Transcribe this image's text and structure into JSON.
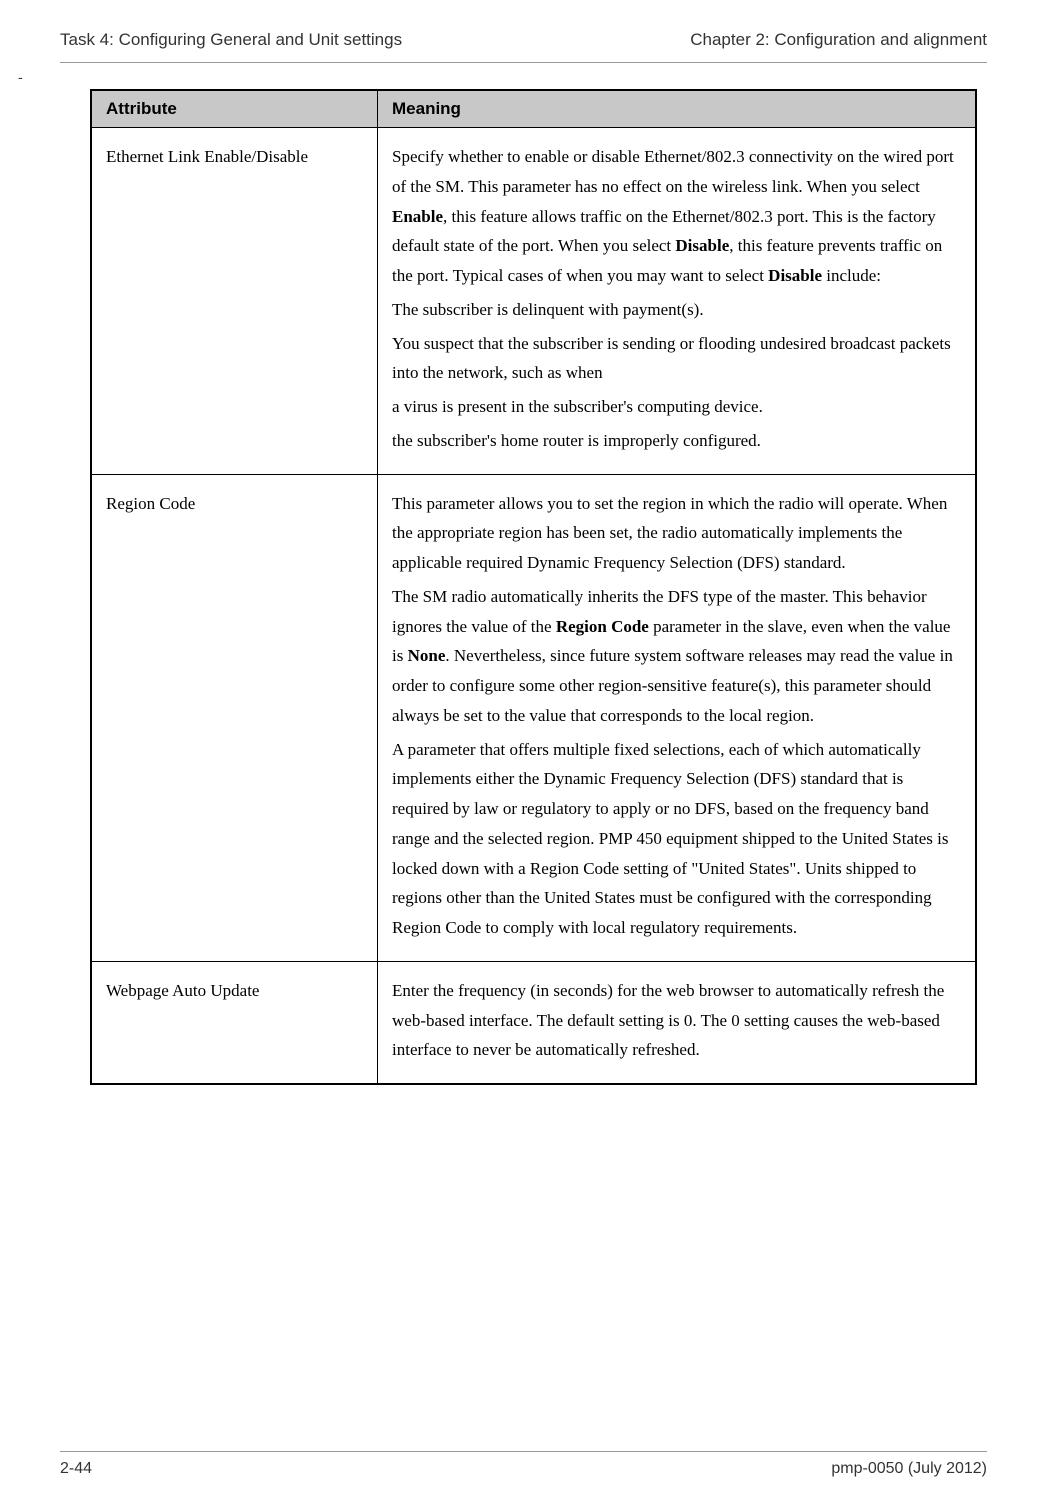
{
  "header": {
    "left": "Task 4: Configuring General and Unit settings",
    "right": "Chapter 2:  Configuration and alignment"
  },
  "dash": "-",
  "table": {
    "header_attr": "Attribute",
    "header_meaning": "Meaning",
    "rows": [
      {
        "attr": "Ethernet Link Enable/Disable",
        "p1a": "Specify whether to enable or disable Ethernet/802.3 connectivity on the wired port of the SM. This parameter has no effect on the wireless link. When you select ",
        "p1b": "Enable",
        "p1c": ", this feature allows traffic on the Ethernet/802.3 port. This is the factory default state of the port. When you select ",
        "p1d": "Disable",
        "p1e": ", this feature prevents traffic on the port. Typical cases of when you may want to select ",
        "p1f": "Disable",
        "p1g": " include:",
        "p2": "The subscriber is delinquent with payment(s).",
        "p3": "You suspect that the subscriber is sending or flooding undesired broadcast packets into the network, such as when",
        "p4": "a virus is present in the subscriber's computing device.",
        "p5": "the subscriber's home router is improperly configured."
      },
      {
        "attr": "Region Code",
        "p1": "This parameter allows you to set the region in which the radio will operate. When the appropriate region has been set, the radio automatically implements the applicable required Dynamic Frequency Selection (DFS) standard.",
        "p2a": "The SM radio automatically inherits the DFS type of the master. This behavior ignores the value of the ",
        "p2b": "Region Code",
        "p2c": " parameter in the slave, even when the value is ",
        "p2d": "None",
        "p2e": ". Nevertheless, since future system software releases may read the value in order to configure some other region-sensitive feature(s), this parameter should always be set to the value that corresponds to the local region.",
        "p3": "A parameter that offers multiple fixed selections, each of which automatically implements either the Dynamic Frequency Selection (DFS) standard that is required by law or regulatory to apply or no DFS, based on the frequency band range and the selected region. PMP 450 equipment shipped to the United States is locked down with a Region Code setting of \"United States\".  Units shipped to regions other than the United States must be configured with the corresponding Region Code to comply with local regulatory requirements."
      },
      {
        "attr": "Webpage Auto Update",
        "p1": "Enter the frequency (in seconds) for the web browser to automatically refresh the web-based interface. The default setting is 0. The 0 setting causes the web-based interface to never be automatically refreshed."
      }
    ]
  },
  "footer": {
    "left": "2-44",
    "right": "pmp-0050 (July 2012)"
  }
}
